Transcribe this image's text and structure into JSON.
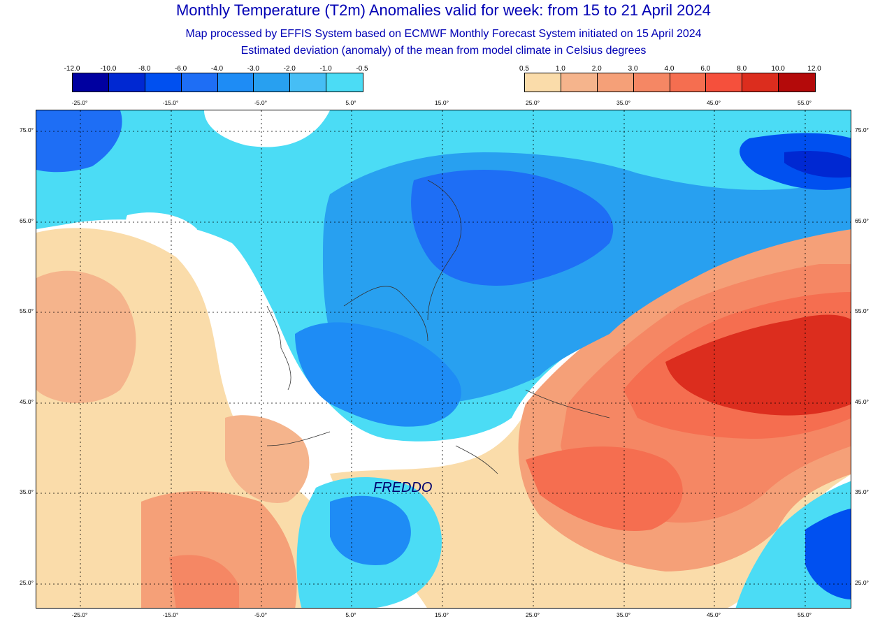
{
  "header": {
    "title": "Monthly Temperature (T2m) Anomalies valid for week: from 15 to 21 April 2024",
    "subtitle1": "Map processed by EFFIS System based on ECMWF Monthly Forecast System initiated on 15 April 2024",
    "subtitle2": "Estimated deviation (anomaly) of the mean from model climate in Celsius degrees"
  },
  "legend_cold": {
    "labels": [
      "-12.0",
      "-10.0",
      "-8.0",
      "-6.0",
      "-4.0",
      "-3.0",
      "-2.0",
      "-1.0",
      "-0.5"
    ],
    "colors": [
      "#0000a0",
      "#0028d2",
      "#0050f0",
      "#1e6ef5",
      "#1e8cf5",
      "#28a0f0",
      "#46bef5",
      "#4bdcf5"
    ]
  },
  "legend_warm": {
    "labels": [
      "0.5",
      "1.0",
      "2.0",
      "3.0",
      "4.0",
      "6.0",
      "8.0",
      "10.0",
      "12.0"
    ],
    "colors": [
      "#fadcaa",
      "#f5b48c",
      "#f5a078",
      "#f58764",
      "#f56e50",
      "#f5503c",
      "#dc2d1e",
      "#b40a0a"
    ]
  },
  "axes": {
    "lon_labels": [
      "-25.0°",
      "-15.0°",
      "-5.0°",
      "5.0°",
      "15.0°",
      "25.0°",
      "35.0°",
      "45.0°",
      "55.0°"
    ],
    "lat_labels": [
      "75.0°",
      "65.0°",
      "55.0°",
      "45.0°",
      "35.0°",
      "25.0°"
    ]
  },
  "annotation": "FREDDO"
}
